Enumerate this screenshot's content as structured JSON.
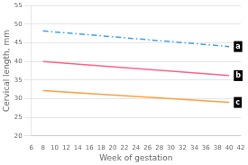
{
  "chart_data": {
    "type": "line",
    "x": [
      8,
      40
    ],
    "series": [
      {
        "values": [
          48.2,
          44.0
        ],
        "line_style": "dashdot"
      },
      {
        "values": [
          40.0,
          36.2
        ],
        "line_style": "solid"
      },
      {
        "values": [
          32.2,
          29.0
        ],
        "line_style": "solid"
      }
    ],
    "xlabel": "Week of gestation",
    "ylabel": "Cervical length, mm",
    "xlim": [
      6,
      42
    ],
    "ylim": [
      20,
      55
    ],
    "xticks": [
      6,
      8,
      10,
      12,
      14,
      16,
      18,
      20,
      22,
      24,
      26,
      28,
      30,
      32,
      34,
      36,
      38,
      40,
      42
    ],
    "yticks": [
      20,
      25,
      30,
      35,
      40,
      45,
      50,
      55
    ],
    "grid": "y",
    "annotations": [
      {
        "text": "a",
        "x": 40.8,
        "y": 44.0
      },
      {
        "text": "b",
        "x": 40.8,
        "y": 36.2
      },
      {
        "text": "c",
        "x": 40.8,
        "y": 29.0
      }
    ]
  }
}
